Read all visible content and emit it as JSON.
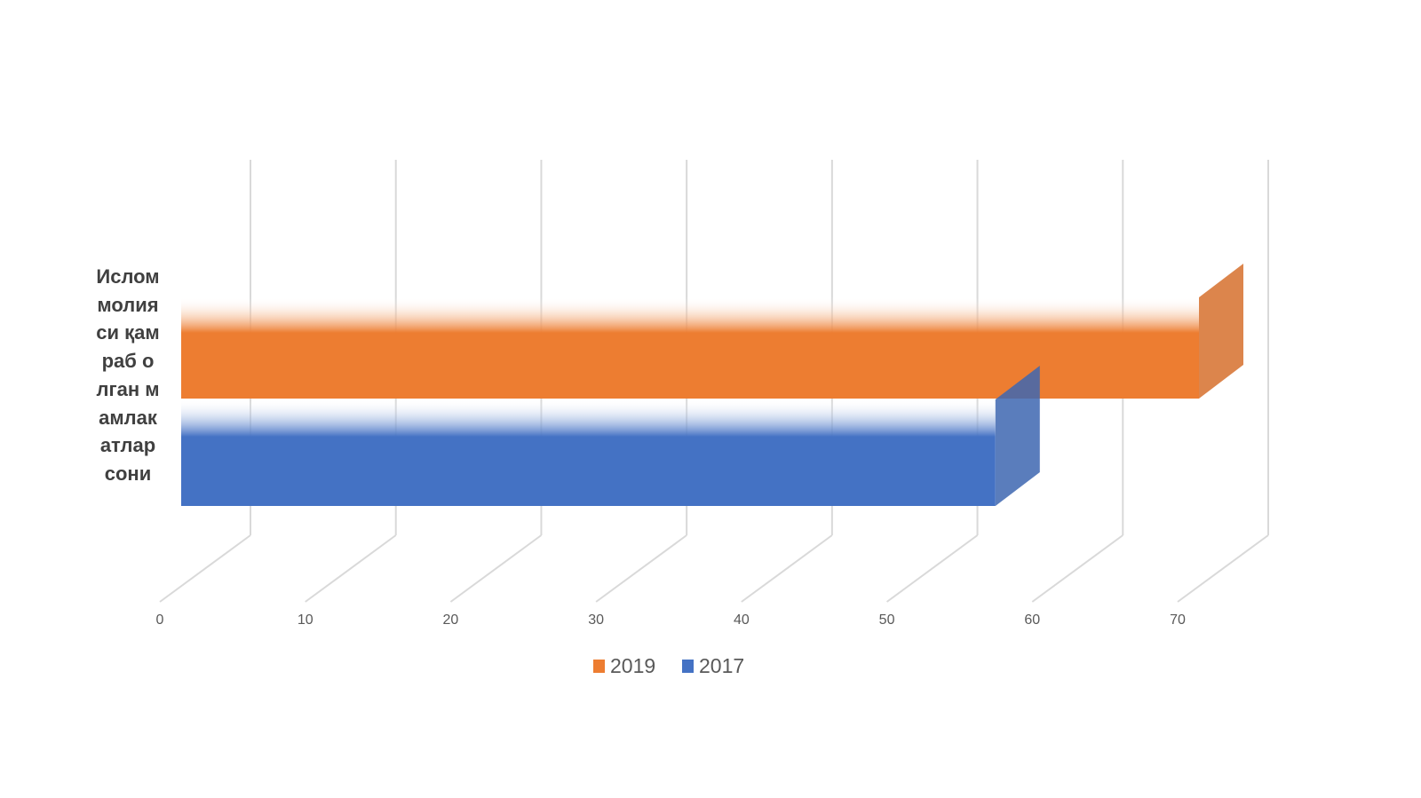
{
  "chart_data": {
    "type": "bar",
    "orientation": "horizontal",
    "categories": [
      "Ислом молияси қамраб олган мамлакатлар сони"
    ],
    "series": [
      {
        "name": "2019",
        "color": "#ed7d31",
        "values": [
          70
        ]
      },
      {
        "name": "2017",
        "color": "#4472c4",
        "values": [
          56
        ]
      }
    ],
    "xlim": [
      0,
      70
    ],
    "xticks": [
      0,
      10,
      20,
      30,
      40,
      50,
      60,
      70
    ],
    "grid": true,
    "legend": "bottom"
  }
}
